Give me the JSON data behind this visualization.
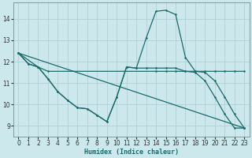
{
  "xlabel": "Humidex (Indice chaleur)",
  "bg_color": "#cce8ec",
  "grid_color": "#b0d0d8",
  "line_color": "#1a6b6b",
  "xlim": [
    -0.5,
    23.5
  ],
  "ylim": [
    8.5,
    14.75
  ],
  "yticks": [
    9,
    10,
    11,
    12,
    13,
    14
  ],
  "xticks": [
    0,
    1,
    2,
    3,
    4,
    5,
    6,
    7,
    8,
    9,
    10,
    11,
    12,
    13,
    14,
    15,
    16,
    17,
    18,
    19,
    20,
    21,
    22,
    23
  ],
  "line1_x": [
    0,
    1,
    2,
    3,
    4,
    5,
    6,
    7,
    8,
    9,
    10,
    11,
    12,
    13,
    14,
    15,
    16,
    17,
    18,
    19,
    20,
    21,
    22,
    23
  ],
  "line1_y": [
    12.4,
    11.9,
    11.75,
    11.2,
    10.6,
    10.2,
    9.85,
    9.8,
    9.5,
    9.2,
    10.35,
    11.75,
    11.7,
    13.1,
    14.35,
    14.4,
    14.2,
    12.2,
    11.55,
    11.5,
    11.1,
    10.35,
    9.55,
    8.9
  ],
  "line2_x": [
    0,
    1,
    2,
    3,
    14,
    15,
    16,
    17,
    18,
    19,
    20,
    21,
    22,
    23
  ],
  "line2_y": [
    12.4,
    11.9,
    11.75,
    11.55,
    11.55,
    11.55,
    11.55,
    11.55,
    11.55,
    11.55,
    11.55,
    11.55,
    11.55,
    11.55
  ],
  "line3_x": [
    0,
    2,
    3,
    4,
    5,
    6,
    7,
    8,
    9,
    10,
    11,
    12,
    13,
    14,
    15,
    16,
    17,
    18,
    19,
    20,
    21,
    22,
    23
  ],
  "line3_y": [
    12.4,
    11.75,
    11.2,
    10.6,
    10.2,
    9.85,
    9.8,
    9.5,
    9.2,
    10.35,
    11.75,
    11.7,
    11.7,
    11.7,
    11.7,
    11.7,
    11.55,
    11.5,
    11.1,
    10.35,
    9.55,
    8.9,
    8.9
  ],
  "line4_x": [
    0,
    23
  ],
  "line4_y": [
    12.4,
    8.9
  ]
}
